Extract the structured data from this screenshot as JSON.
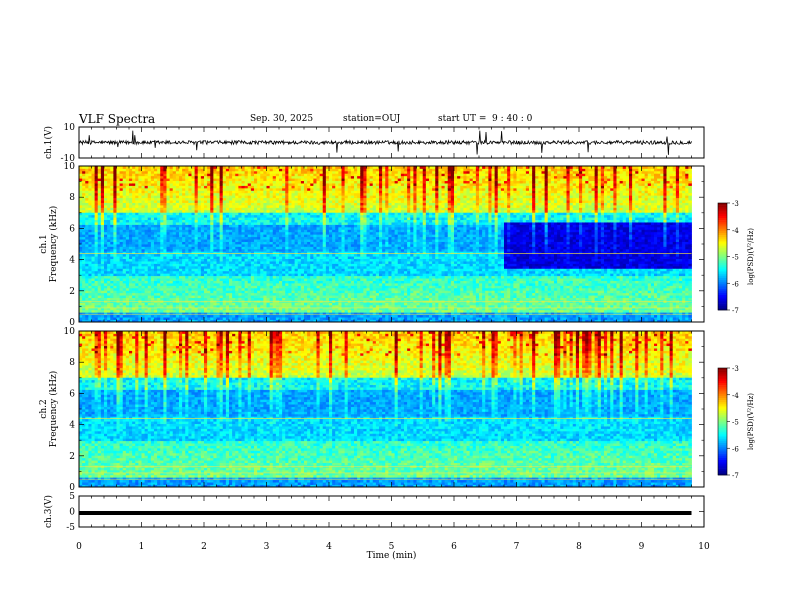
{
  "header": {
    "title": "VLF Spectra",
    "date": "Sep. 30, 2025",
    "station": "station=OUJ",
    "start_label": "start UT =",
    "start_time": "9 : 40 : 0"
  },
  "chart_data": [
    {
      "type": "line",
      "name": "ch1-waveform",
      "ylabel": "ch.1(V)",
      "ylim": [
        -10,
        10
      ],
      "y_ticks": [
        "10",
        "-10"
      ],
      "xlim": [
        0,
        10
      ],
      "baseline": 0,
      "data_xmax": 9.8
    },
    {
      "type": "heatmap",
      "name": "ch1-spectrogram",
      "ylabel_line1": "ch.1",
      "ylabel_line2": "Frequency (kHz)",
      "ylim": [
        0,
        10
      ],
      "y_ticks": [
        "0",
        "2",
        "4",
        "6",
        "8",
        "10"
      ],
      "xlim": [
        0,
        10
      ],
      "data_xmax": 9.8,
      "colorbar": {
        "label": "log(PSD)(V²/Hz)",
        "range": [
          -7,
          -3
        ],
        "ticks": [
          "-3",
          "-4",
          "-5",
          "-6",
          "-7"
        ]
      }
    },
    {
      "type": "heatmap",
      "name": "ch2-spectrogram",
      "ylabel_line1": "ch.2",
      "ylabel_line2": "Frequency (kHz)",
      "ylim": [
        0,
        10
      ],
      "y_ticks": [
        "0",
        "2",
        "4",
        "6",
        "8",
        "10"
      ],
      "xlim": [
        0,
        10
      ],
      "data_xmax": 9.8,
      "colorbar": {
        "label": "log(PSD)(V²/Hz)",
        "range": [
          -7,
          -3
        ],
        "ticks": [
          "-3",
          "-4",
          "-5",
          "-6",
          "-7"
        ]
      }
    },
    {
      "type": "line",
      "name": "ch3-waveform",
      "ylabel": "ch.3(V)",
      "ylim": [
        -5,
        5
      ],
      "y_ticks": [
        "5",
        "0",
        "-5"
      ],
      "xlim": [
        0,
        10
      ],
      "baseline": -0.5,
      "data_xmax": 9.8
    }
  ],
  "x_axis": {
    "label": "Time (min)",
    "ticks": [
      "0",
      "1",
      "2",
      "3",
      "4",
      "5",
      "6",
      "7",
      "8",
      "9",
      "10"
    ]
  }
}
